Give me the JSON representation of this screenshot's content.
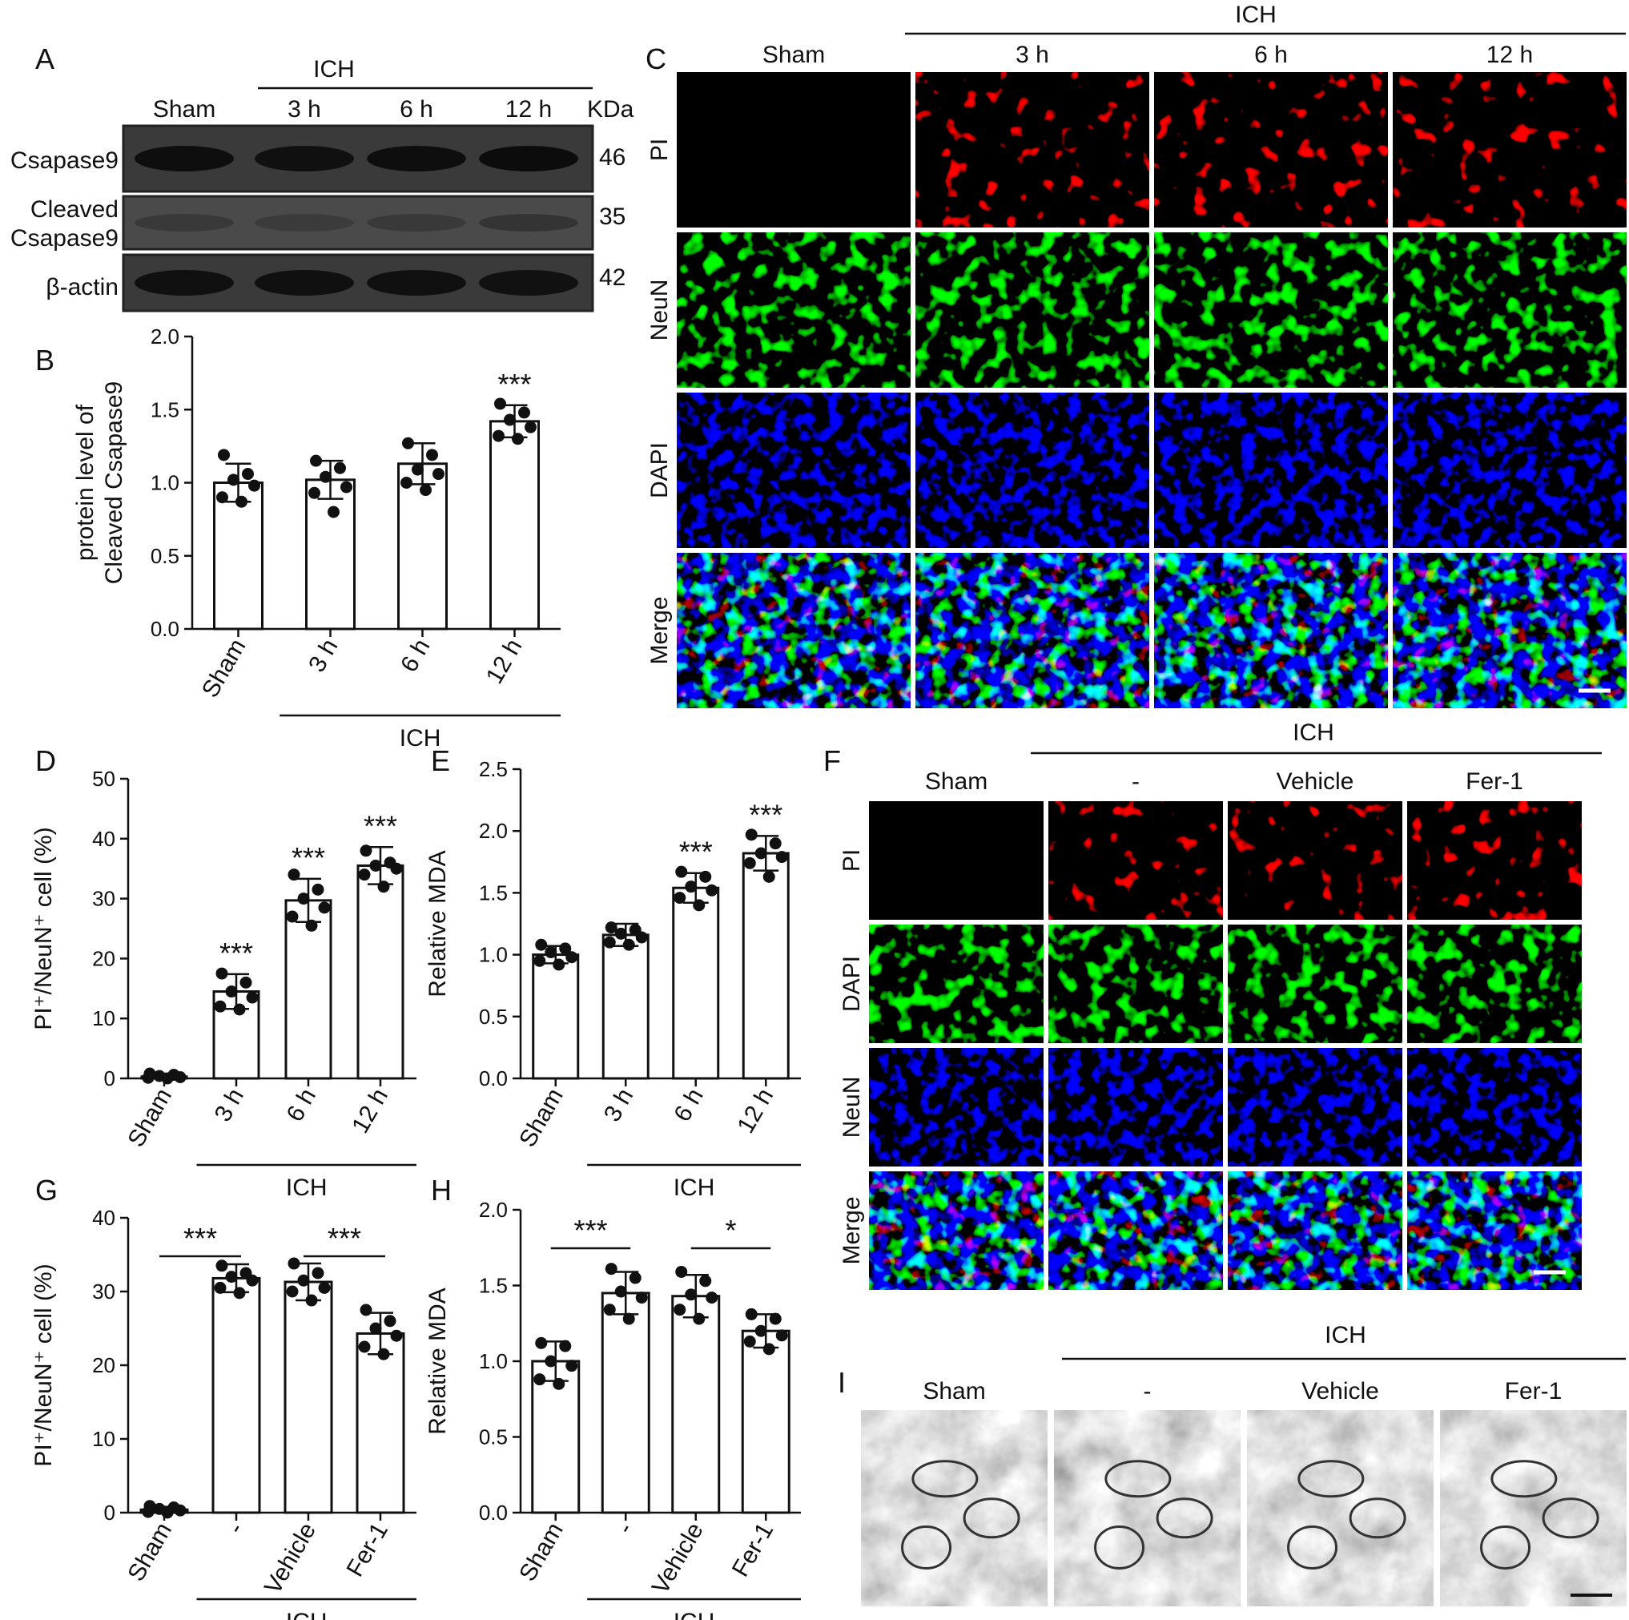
{
  "panels": {
    "A": {
      "letter": "A",
      "group": "ICH",
      "lanes": [
        "Sham",
        "3 h",
        "6 h",
        "12 h"
      ],
      "unit": "KDa",
      "rows": [
        {
          "label": "Csapase9",
          "kda": "46",
          "intensity": [
            0.95,
            0.92,
            0.95,
            0.97
          ]
        },
        {
          "label_line1": "Cleaved",
          "label_line2": "Csapase9",
          "kda": "35",
          "intensity": [
            0.32,
            0.3,
            0.33,
            0.42
          ]
        },
        {
          "label": "β-actin",
          "kda": "42",
          "intensity": [
            0.92,
            0.92,
            0.92,
            0.9
          ]
        }
      ]
    },
    "C": {
      "letter": "C",
      "group": "ICH",
      "columns": [
        "Sham",
        "3 h",
        "6 h",
        "12 h"
      ],
      "rows": [
        "PI",
        "NeuN",
        "DAPI",
        "Merge"
      ]
    },
    "F": {
      "letter": "F",
      "group": "ICH",
      "columns": [
        "Sham",
        "-",
        "Vehicle",
        "Fer-1"
      ],
      "rows": [
        "PI",
        "DAPI",
        "NeuN",
        "Merge"
      ]
    },
    "I": {
      "letter": "I",
      "group": "ICH",
      "columns": [
        "Sham",
        "-",
        "Vehicle",
        "Fer-1"
      ]
    }
  },
  "chart_data": [
    {
      "panel": "B",
      "type": "bar",
      "ylabel_line1": "protein level of",
      "ylabel_line2": "Cleaved Csapase9",
      "categories": [
        "Sham",
        "3 h",
        "6 h",
        "12 h"
      ],
      "group_label": "ICH",
      "values": [
        1.0,
        1.02,
        1.13,
        1.42
      ],
      "error": [
        0.13,
        0.13,
        0.14,
        0.11
      ],
      "points": [
        [
          1.19,
          1.06,
          1.02,
          0.98,
          0.9,
          0.87
        ],
        [
          1.15,
          1.1,
          1.04,
          0.97,
          0.93,
          0.8
        ],
        [
          1.27,
          1.19,
          1.09,
          1.06,
          1.0,
          0.95
        ],
        [
          1.54,
          1.48,
          1.43,
          1.38,
          1.32,
          1.3
        ]
      ],
      "significance": [
        "",
        "",
        "",
        "***"
      ],
      "ylim": [
        0,
        2.0
      ],
      "yticks": [
        "0.0",
        "0.5",
        "1.0",
        "1.5",
        "2.0"
      ]
    },
    {
      "panel": "D",
      "type": "bar",
      "ylabel": "PI⁺/NeuN⁺ cell (%)",
      "categories": [
        "Sham",
        "3 h",
        "6 h",
        "12 h"
      ],
      "group_label": "ICH",
      "values": [
        0.3,
        14.5,
        29.7,
        35.5
      ],
      "error": [
        0.5,
        2.9,
        3.6,
        3.1
      ],
      "points": [
        [
          0.8,
          0.6,
          0.4,
          0.2,
          0.1,
          0.0
        ],
        [
          17.5,
          16.0,
          14.5,
          13.5,
          12.0,
          11.5
        ],
        [
          34.0,
          31.5,
          30.0,
          28.5,
          27.0,
          25.5
        ],
        [
          38.0,
          36.0,
          35.5,
          35.0,
          34.0,
          32.0
        ]
      ],
      "significance": [
        "",
        "***",
        "***",
        "***"
      ],
      "ylim": [
        0,
        50
      ],
      "yticks": [
        "0",
        "10",
        "20",
        "30",
        "40",
        "50"
      ]
    },
    {
      "panel": "E",
      "type": "bar",
      "ylabel": "Relative MDA",
      "categories": [
        "Sham",
        "3 h",
        "6 h",
        "12 h"
      ],
      "group_label": "ICH",
      "values": [
        1.0,
        1.16,
        1.54,
        1.82
      ],
      "error": [
        0.07,
        0.09,
        0.12,
        0.14
      ],
      "points": [
        [
          1.08,
          1.05,
          1.02,
          0.98,
          0.95,
          0.92
        ],
        [
          1.22,
          1.2,
          1.17,
          1.14,
          1.1,
          1.08
        ],
        [
          1.67,
          1.63,
          1.55,
          1.52,
          1.46,
          1.4
        ],
        [
          1.97,
          1.9,
          1.82,
          1.79,
          1.74,
          1.63
        ]
      ],
      "significance": [
        "",
        "",
        "***",
        "***"
      ],
      "ylim": [
        0,
        2.5
      ],
      "yticks": [
        "0.0",
        "0.5",
        "1.0",
        "1.5",
        "2.0",
        "2.5"
      ]
    },
    {
      "panel": "G",
      "type": "bar",
      "ylabel": "PI⁺/NeuN⁺ cell (%)",
      "categories": [
        "Sham",
        "-",
        "Vehicle",
        "Fer-1"
      ],
      "group_label": "ICH",
      "values": [
        0.4,
        31.8,
        31.3,
        24.3
      ],
      "error": [
        0.4,
        1.9,
        2.5,
        2.8
      ],
      "points": [
        [
          0.9,
          0.7,
          0.5,
          0.3,
          0.1,
          0.0
        ],
        [
          33.5,
          32.5,
          32.0,
          31.5,
          30.5,
          29.8
        ],
        [
          33.8,
          32.5,
          31.5,
          30.5,
          30.0,
          28.8
        ],
        [
          27.5,
          26.0,
          25.0,
          24.0,
          22.5,
          21.5
        ]
      ],
      "significance_brackets": [
        {
          "from": 0,
          "to": 1,
          "label": "***"
        },
        {
          "from": 2,
          "to": 3,
          "label": "***"
        }
      ],
      "ylim": [
        0,
        40
      ],
      "yticks": [
        "0",
        "10",
        "20",
        "30",
        "40"
      ]
    },
    {
      "panel": "H",
      "type": "bar",
      "ylabel": "Relative MDA",
      "categories": [
        "Sham",
        "-",
        "Vehicle",
        "Fer-1"
      ],
      "group_label": "ICH",
      "values": [
        1.0,
        1.45,
        1.43,
        1.2
      ],
      "error": [
        0.13,
        0.14,
        0.14,
        0.11
      ],
      "points": [
        [
          1.12,
          1.1,
          1.0,
          0.97,
          0.88,
          0.85
        ],
        [
          1.61,
          1.55,
          1.46,
          1.42,
          1.34,
          1.28
        ],
        [
          1.59,
          1.53,
          1.44,
          1.42,
          1.34,
          1.28
        ],
        [
          1.31,
          1.28,
          1.2,
          1.17,
          1.13,
          1.08
        ]
      ],
      "significance_brackets": [
        {
          "from": 0,
          "to": 1,
          "label": "***"
        },
        {
          "from": 2,
          "to": 3,
          "label": "*"
        }
      ],
      "ylim": [
        0,
        2.0
      ],
      "yticks": [
        "0.0",
        "0.5",
        "1.0",
        "1.5",
        "2.0"
      ]
    }
  ]
}
